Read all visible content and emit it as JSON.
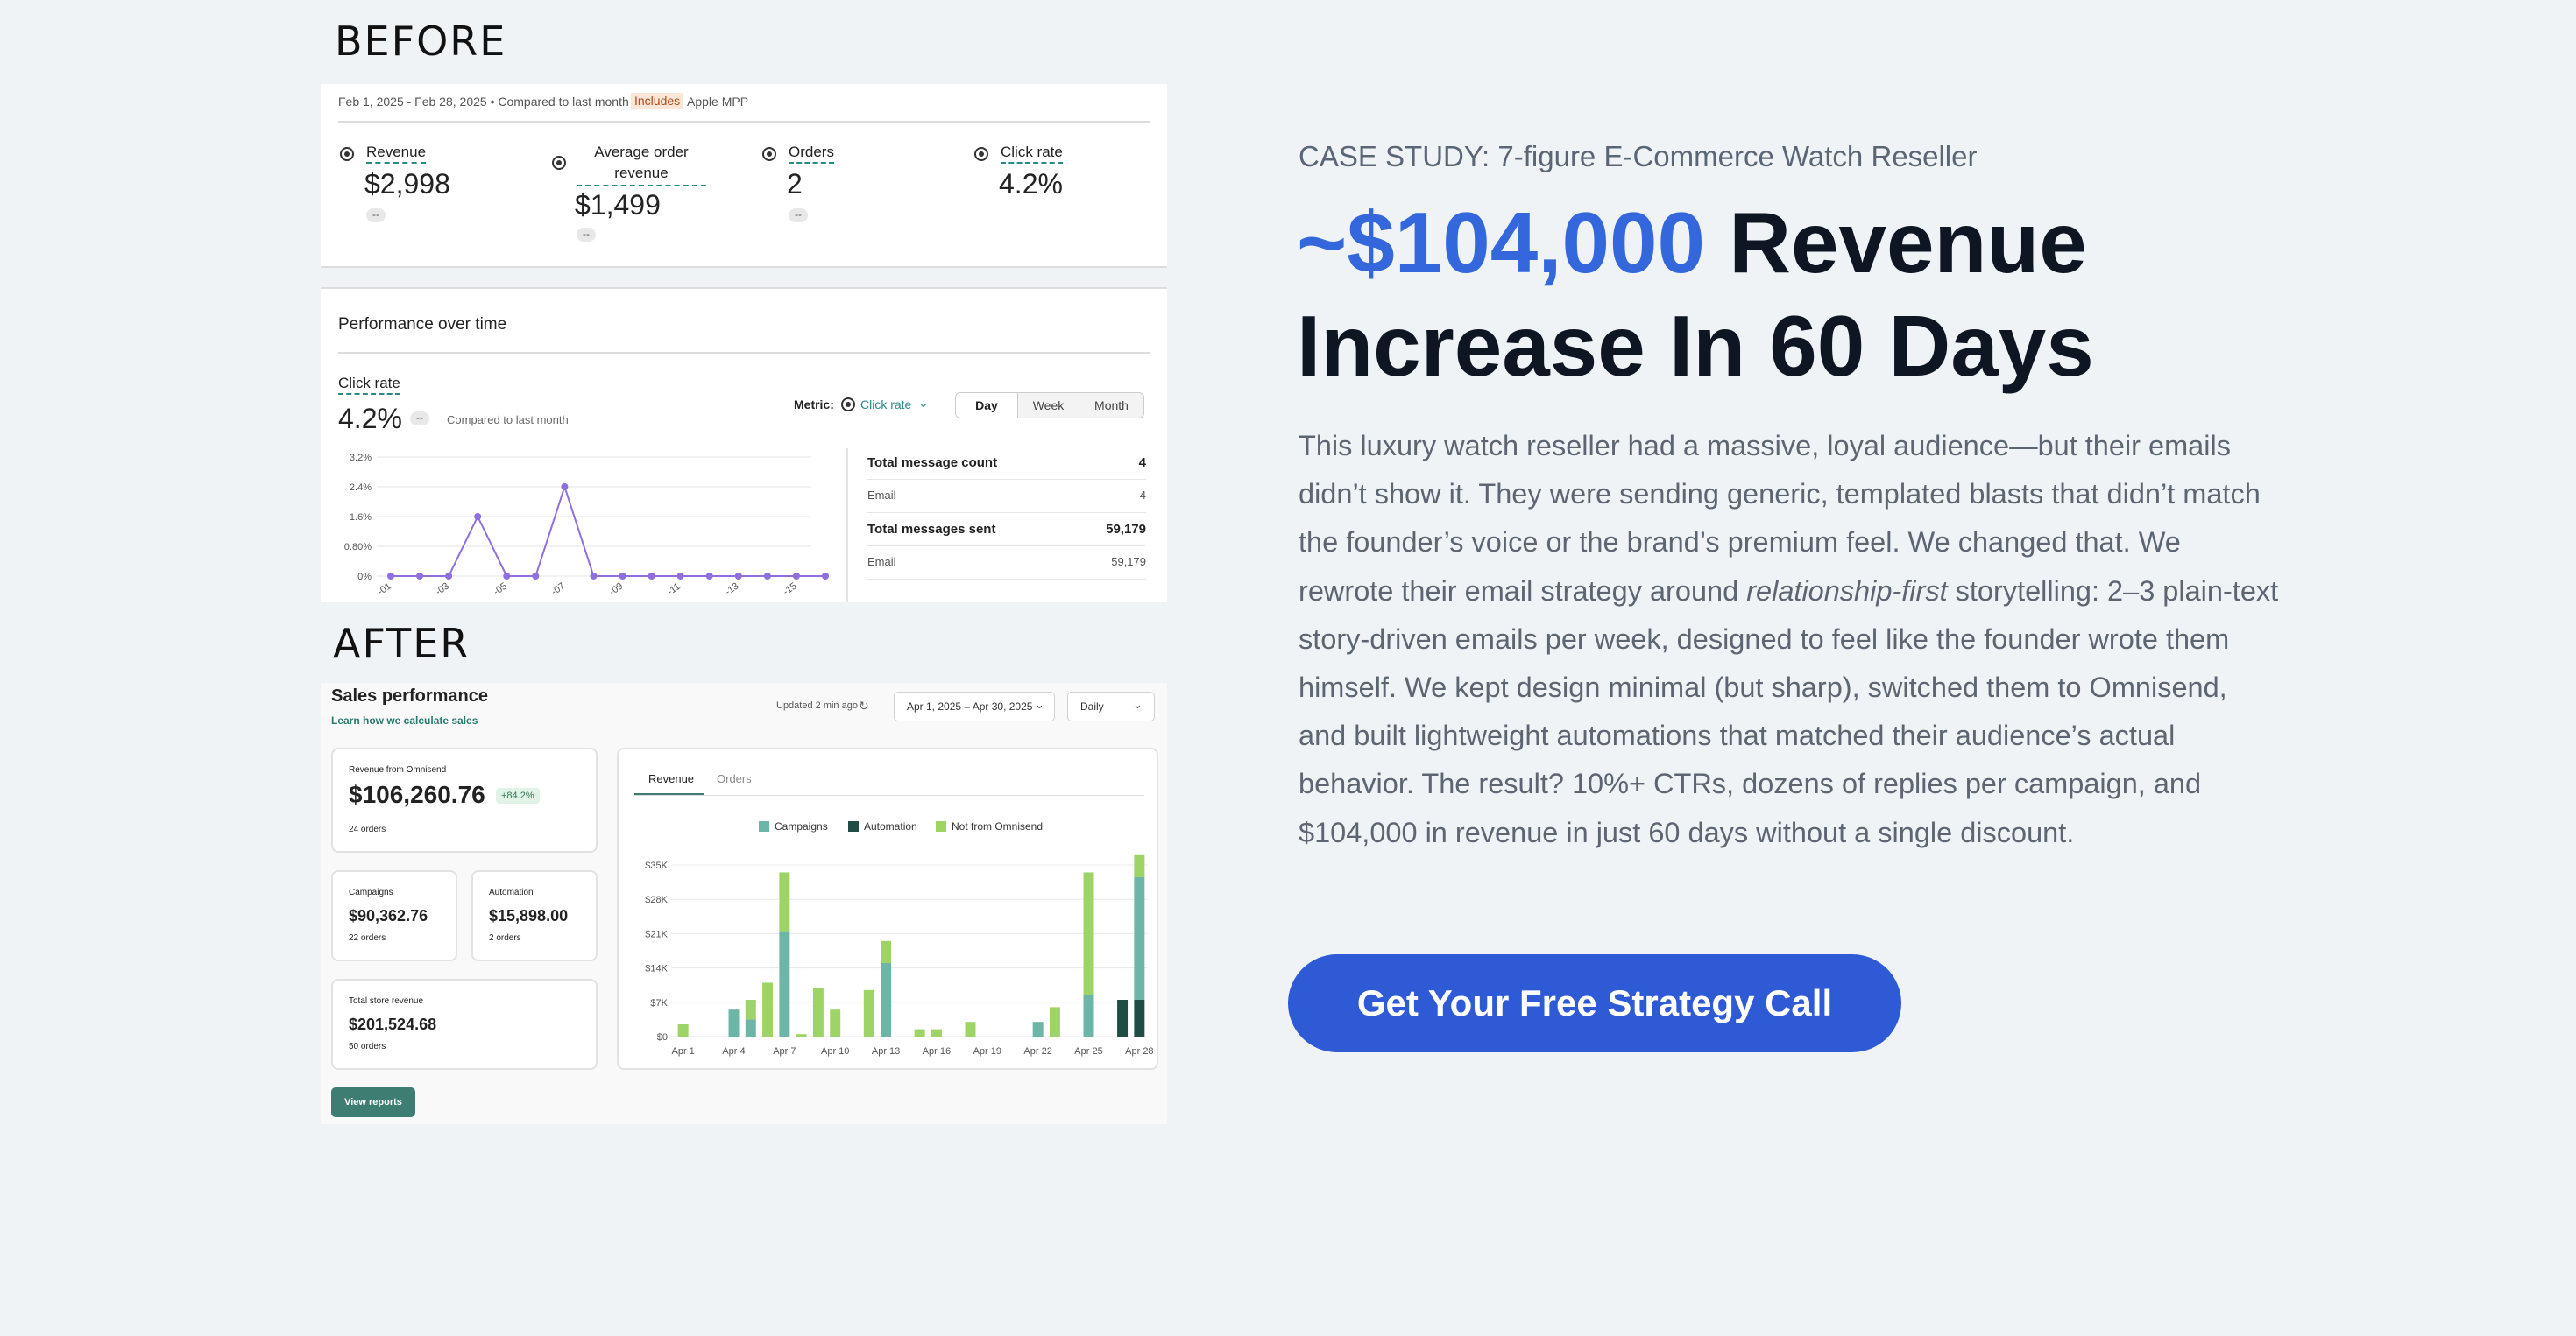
{
  "before_label": "BEFORE",
  "after_label": "AFTER",
  "before_report": {
    "date_range": "Feb 1, 2025 - Feb 28, 2025 • Compared to last month •",
    "includes_badge": "Includes",
    "apple_mpp": "Apple MPP",
    "metrics": [
      {
        "label": "Revenue",
        "value": "$2,998",
        "chip": "--"
      },
      {
        "label": "Average order revenue",
        "value": "$1,499",
        "chip": "--"
      },
      {
        "label": "Orders",
        "value": "2",
        "chip": "--"
      },
      {
        "label": "Click rate",
        "value": "4.2%"
      }
    ],
    "perf_title": "Performance over time",
    "click_label": "Click rate",
    "click_value": "4.2%",
    "click_chip": "--",
    "compared": "Compared to last month",
    "metric_label": "Metric:",
    "metric_value": "Click rate",
    "toggles": [
      "Day",
      "Week",
      "Month"
    ],
    "side_table": [
      {
        "label": "Total message count",
        "value": "4",
        "bold": true
      },
      {
        "label": "Email",
        "value": "4",
        "bold": false
      },
      {
        "label": "Total messages sent",
        "value": "59,179",
        "bold": true
      },
      {
        "label": "Email",
        "value": "59,179",
        "bold": false
      }
    ],
    "chart_data": {
      "type": "line",
      "y_ticks": [
        "3.2%",
        "2.4%",
        "1.6%",
        "0.80%",
        "0%"
      ],
      "ylim": [
        0,
        3.2
      ],
      "x_labels": [
        "-01",
        "-03",
        "-05",
        "-07",
        "-09",
        "-11",
        "-13",
        "-15"
      ],
      "values": [
        0,
        0,
        0,
        1.6,
        0,
        0,
        2.4,
        0,
        0,
        0,
        0,
        0,
        0,
        0,
        0,
        0
      ],
      "color": "#8f6fe0"
    }
  },
  "after_report": {
    "title": "Sales performance",
    "learn_link": "Learn how we calculate sales",
    "updated": "Updated 2 min ago",
    "date_range": "Apr 1, 2025 – Apr 30, 2025",
    "period": "Daily",
    "revenue_label": "Revenue from Omnisend",
    "revenue_value": "$106,260.76",
    "revenue_change": "+84.2%",
    "revenue_orders": "24 orders",
    "campaigns_label": "Campaigns",
    "campaigns_value": "$90,362.76",
    "campaigns_orders": "22 orders",
    "automation_label": "Automation",
    "automation_value": "$15,898.00",
    "automation_orders": "2 orders",
    "store_label": "Total store revenue",
    "store_value": "$201,524.68",
    "store_orders": "50 orders",
    "view_reports": "View reports",
    "tabs": [
      "Revenue",
      "Orders"
    ],
    "chart_data": {
      "type": "bar",
      "stacked": true,
      "categories": [
        "Apr 1",
        "Apr 2",
        "Apr 3",
        "Apr 4",
        "Apr 5",
        "Apr 6",
        "Apr 7",
        "Apr 8",
        "Apr 9",
        "Apr 10",
        "Apr 11",
        "Apr 12",
        "Apr 13",
        "Apr 14",
        "Apr 15",
        "Apr 16",
        "Apr 17",
        "Apr 18",
        "Apr 19",
        "Apr 20",
        "Apr 21",
        "Apr 22",
        "Apr 23",
        "Apr 24",
        "Apr 25",
        "Apr 26",
        "Apr 27",
        "Apr 28"
      ],
      "x_tick_labels": [
        "Apr 1",
        "Apr 4",
        "Apr 7",
        "Apr 10",
        "Apr 13",
        "Apr 16",
        "Apr 19",
        "Apr 22",
        "Apr 25",
        "Apr 28"
      ],
      "y_tick_labels": [
        "$35K",
        "$28K",
        "$21K",
        "$14K",
        "$7K",
        "$0"
      ],
      "ylim": [
        0,
        35000
      ],
      "legend_position": "top",
      "series": [
        {
          "name": "Campaigns",
          "color": "#6db5a6",
          "values": [
            0,
            0,
            0,
            5500,
            3500,
            0,
            21500,
            0,
            0,
            0,
            0,
            0,
            15000,
            0,
            0,
            0,
            0,
            0,
            0,
            0,
            0,
            3000,
            0,
            0,
            8500,
            0,
            0,
            25000
          ]
        },
        {
          "name": "Automation",
          "color": "#1f4d45",
          "values": [
            0,
            0,
            0,
            0,
            0,
            0,
            0,
            0,
            0,
            0,
            0,
            0,
            0,
            0,
            0,
            0,
            0,
            0,
            0,
            0,
            0,
            0,
            0,
            0,
            0,
            0,
            7500,
            7500
          ]
        },
        {
          "name": "Not from Omnisend",
          "color": "#9ed466",
          "values": [
            2500,
            0,
            0,
            0,
            4000,
            11000,
            12000,
            500,
            10000,
            5500,
            0,
            9500,
            4500,
            0,
            1500,
            1500,
            0,
            3000,
            0,
            0,
            0,
            0,
            6000,
            0,
            25000,
            0,
            0,
            4500
          ]
        }
      ]
    }
  },
  "right": {
    "case_study": "CASE STUDY: 7-figure E-Commerce Watch Reseller",
    "headline_accent": "~$104,000",
    "headline_rest": " Revenue Increase In 60 Days",
    "body_before": "This luxury watch reseller had a massive, loyal audience—but their emails didn’t show it. They were sending generic, templated blasts that didn’t match the founder’s voice or the brand’s premium feel. We changed that. We rewrote their email strategy around ",
    "body_italic": "relationship-first",
    "body_after": " storytelling: 2–3 plain-text story-driven emails per week, designed to feel like the founder wrote them himself. We kept design minimal (but sharp), switched them to Omnisend, and built lightweight automations that matched their audience’s actual behavior. The result? 10%+ CTRs, dozens of replies per campaign, and $104,000 in revenue in just 60 days without a single discount.",
    "cta": "Get Your Free Strategy Call"
  }
}
